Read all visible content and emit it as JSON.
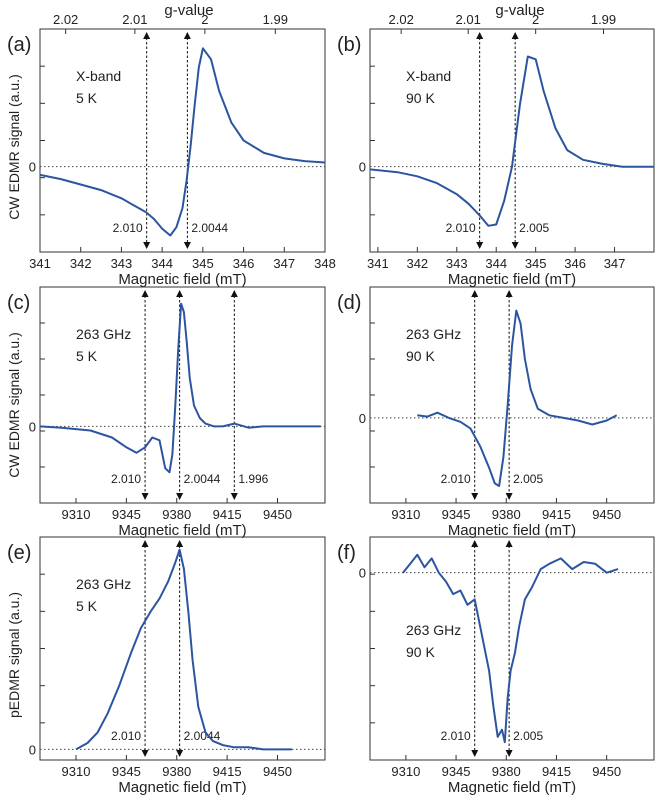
{
  "figure": {
    "top_axis_label": "g-value",
    "left_ylabel_top": "CW EDMR signal (a.u.)",
    "left_ylabel_mid": "CW EDMR signal (a.u.)",
    "left_ylabel_bottom": "pEDMR signal (a.u.)"
  },
  "colors": {
    "trace": "#2c55a0",
    "axis": "#333333",
    "marker": "#111111"
  },
  "chart_data": [
    {
      "panel": "(a)",
      "type": "line",
      "title_lines": [
        "X-band",
        "5 K"
      ],
      "xlabel": "Magnetic field (mT)",
      "xlim": [
        341,
        348
      ],
      "ylim": [
        -0.62,
        1.0
      ],
      "xticks": [
        341,
        342,
        343,
        344,
        345,
        346,
        347,
        348
      ],
      "g_ticks": [
        "2.02",
        "2.01",
        "2",
        "1.99"
      ],
      "g_tick_fields": [
        341.63,
        343.33,
        345.05,
        346.78
      ],
      "zero_label": "0",
      "markers": [
        {
          "x": 343.62,
          "label": "2.010"
        },
        {
          "x": 344.62,
          "label": "2.0044"
        }
      ],
      "series": [
        {
          "x": [
            341,
            341.5,
            342,
            342.5,
            343,
            343.3,
            343.6,
            343.8,
            344,
            344.2,
            344.35,
            344.5,
            344.6,
            344.7,
            344.8,
            344.9,
            345,
            345.2,
            345.4,
            345.7,
            346,
            346.5,
            347,
            347.5,
            348
          ],
          "y": [
            -0.06,
            -0.09,
            -0.13,
            -0.17,
            -0.23,
            -0.28,
            -0.33,
            -0.38,
            -0.45,
            -0.5,
            -0.44,
            -0.3,
            -0.1,
            0.15,
            0.45,
            0.72,
            0.86,
            0.78,
            0.55,
            0.32,
            0.19,
            0.1,
            0.06,
            0.04,
            0.03
          ]
        }
      ]
    },
    {
      "panel": "(b)",
      "type": "line",
      "title_lines": [
        "X-band",
        "90 K"
      ],
      "xlabel": "Magnetic field (mT)",
      "xlim": [
        340.8,
        348
      ],
      "ylim": [
        -0.62,
        1.0
      ],
      "xticks": [
        341,
        342,
        343,
        344,
        345,
        346,
        347
      ],
      "g_ticks": [
        "2.02",
        "2.01",
        "2",
        "1.99"
      ],
      "g_tick_fields": [
        341.59,
        343.29,
        345.0,
        346.72
      ],
      "zero_label": "0",
      "markers": [
        {
          "x": 343.58,
          "label": "2.010"
        },
        {
          "x": 344.48,
          "label": "2.005"
        }
      ],
      "series": [
        {
          "x": [
            340.8,
            341.5,
            342,
            342.5,
            343,
            343.3,
            343.6,
            343.8,
            344,
            344.2,
            344.4,
            344.6,
            344.8,
            345,
            345.2,
            345.5,
            345.8,
            346.2,
            346.7,
            347.2,
            348
          ],
          "y": [
            -0.02,
            -0.04,
            -0.07,
            -0.12,
            -0.2,
            -0.27,
            -0.36,
            -0.43,
            -0.42,
            -0.25,
            0.0,
            0.45,
            0.8,
            0.78,
            0.55,
            0.28,
            0.12,
            0.05,
            0.02,
            0.0,
            0.0
          ]
        }
      ]
    },
    {
      "panel": "(c)",
      "type": "line",
      "title_lines": [
        "263 GHz",
        "5 K"
      ],
      "xlabel": "Magnetic field (mT)",
      "xlim": [
        9285,
        9483
      ],
      "ylim": [
        -0.55,
        1.0
      ],
      "xticks": [
        9310,
        9345,
        9380,
        9415,
        9450
      ],
      "zero_label": "0",
      "markers": [
        {
          "x": 9358,
          "label": "2.010"
        },
        {
          "x": 9382,
          "label": "2.0044"
        },
        {
          "x": 9420,
          "label": "1.996"
        }
      ],
      "series": [
        {
          "x": [
            9285,
            9300,
            9320,
            9335,
            9345,
            9352,
            9358,
            9363,
            9368,
            9372,
            9375,
            9377,
            9379,
            9381,
            9383,
            9385,
            9387,
            9389,
            9392,
            9396,
            9400,
            9406,
            9412,
            9420,
            9430,
            9440,
            9460,
            9480
          ],
          "y": [
            0.0,
            -0.01,
            -0.03,
            -0.08,
            -0.15,
            -0.19,
            -0.15,
            -0.08,
            -0.1,
            -0.3,
            -0.33,
            -0.2,
            0.15,
            0.55,
            0.88,
            0.82,
            0.6,
            0.35,
            0.15,
            0.06,
            0.02,
            0.0,
            0.0,
            0.02,
            -0.01,
            0.0,
            0.0,
            0.0
          ]
        }
      ]
    },
    {
      "panel": "(d)",
      "type": "line",
      "title_lines": [
        "263 GHz",
        "90 K"
      ],
      "xlabel": "Magnetic field (mT)",
      "xlim": [
        9285,
        9483
      ],
      "ylim": [
        -0.65,
        1.0
      ],
      "xticks": [
        9310,
        9345,
        9380,
        9415,
        9450
      ],
      "zero_label": "0",
      "markers": [
        {
          "x": 9358,
          "label": "2.010"
        },
        {
          "x": 9382,
          "label": "2.005"
        }
      ],
      "series": [
        {
          "x": [
            9318,
            9325,
            9332,
            9340,
            9348,
            9355,
            9362,
            9368,
            9372,
            9375,
            9378,
            9381,
            9384,
            9387,
            9390,
            9393,
            9397,
            9402,
            9410,
            9420,
            9430,
            9440,
            9450,
            9457
          ],
          "y": [
            0.02,
            0.01,
            0.04,
            0.0,
            -0.03,
            -0.08,
            -0.22,
            -0.38,
            -0.5,
            -0.52,
            -0.3,
            0.1,
            0.55,
            0.82,
            0.72,
            0.45,
            0.22,
            0.07,
            0.02,
            0.0,
            -0.02,
            -0.05,
            -0.02,
            0.02
          ]
        }
      ]
    },
    {
      "panel": "(e)",
      "type": "line",
      "title_lines": [
        "263 GHz",
        "5 K"
      ],
      "xlabel": "Magnetic field (mT)",
      "xlim": [
        9285,
        9483
      ],
      "ylim": [
        -0.05,
        1.0
      ],
      "xticks": [
        9310,
        9345,
        9380,
        9415,
        9450
      ],
      "zero_label": "0",
      "markers": [
        {
          "x": 9358,
          "label": "2.010"
        },
        {
          "x": 9382,
          "label": "2.0044"
        }
      ],
      "series": [
        {
          "x": [
            9310,
            9318,
            9325,
            9332,
            9340,
            9348,
            9355,
            9362,
            9368,
            9374,
            9379,
            9382,
            9385,
            9388,
            9391,
            9395,
            9400,
            9405,
            9412,
            9420,
            9430,
            9440,
            9450,
            9460
          ],
          "y": [
            0.0,
            0.03,
            0.08,
            0.17,
            0.3,
            0.45,
            0.57,
            0.65,
            0.71,
            0.79,
            0.88,
            0.94,
            0.85,
            0.65,
            0.42,
            0.2,
            0.08,
            0.04,
            0.02,
            0.01,
            0.01,
            0.0,
            0.0,
            0.0
          ]
        }
      ]
    },
    {
      "panel": "(f)",
      "type": "line",
      "title_lines": [
        "263 GHz",
        "90 K"
      ],
      "xlabel": "Magnetic field (mT)",
      "xlim": [
        9285,
        9483
      ],
      "ylim": [
        -1.05,
        0.2
      ],
      "xticks": [
        9310,
        9345,
        9380,
        9415,
        9450
      ],
      "zero_label": "0",
      "markers": [
        {
          "x": 9358,
          "label": "2.010"
        },
        {
          "x": 9382,
          "label": "2.005"
        }
      ],
      "series": [
        {
          "x": [
            9308,
            9313,
            9318,
            9323,
            9328,
            9333,
            9338,
            9343,
            9348,
            9353,
            9358,
            9363,
            9368,
            9371,
            9374,
            9377,
            9379,
            9381,
            9383,
            9386,
            9389,
            9393,
            9398,
            9404,
            9410,
            9418,
            9426,
            9434,
            9442,
            9450,
            9458
          ],
          "y": [
            0.0,
            0.05,
            0.1,
            0.03,
            0.08,
            0.0,
            -0.05,
            -0.12,
            -0.1,
            -0.18,
            -0.15,
            -0.35,
            -0.55,
            -0.75,
            -0.92,
            -0.88,
            -0.95,
            -0.7,
            -0.55,
            -0.45,
            -0.3,
            -0.15,
            -0.08,
            0.02,
            0.05,
            0.08,
            0.02,
            0.06,
            0.05,
            0.0,
            0.02
          ]
        }
      ]
    }
  ]
}
